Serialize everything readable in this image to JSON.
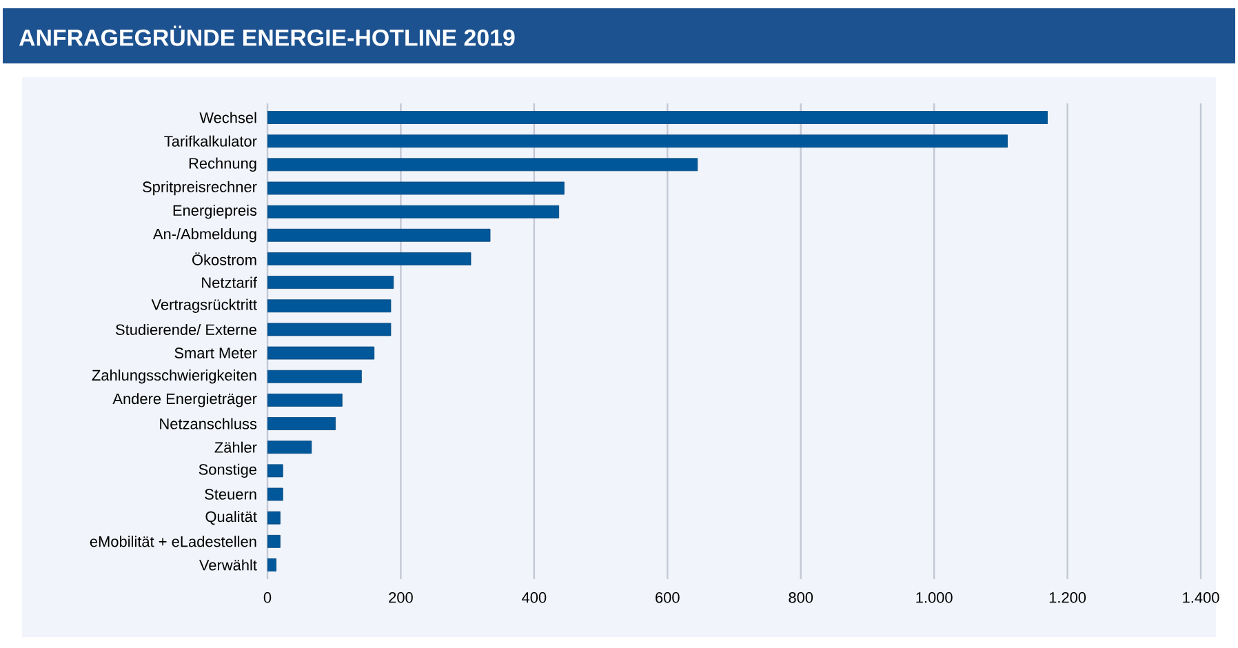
{
  "chart_data": {
    "type": "bar",
    "orientation": "horizontal",
    "title": "ANFRAGEGRÜNDE ENERGIE-HOTLINE 2019",
    "categories": [
      "Wechsel",
      "Tarifkalkulator",
      "Rechnung",
      "Spritpreisrechner",
      "Energiepreis",
      "An-/Abmeldung",
      "Ökostrom",
      "Netztarif",
      "Vertragsrücktritt",
      "Studierende/ Externe",
      "Smart Meter",
      "Zahlungsschwierigkeiten",
      "Andere Energieträger",
      "Netzanschluss",
      "Zähler",
      "Sonstige",
      "Steuern",
      "Qualität",
      "eMobilität + eLadestellen",
      "Verwählt"
    ],
    "values": [
      1170,
      1110,
      645,
      445,
      437,
      334,
      305,
      189,
      185,
      185,
      160,
      141,
      112,
      102,
      66,
      23,
      23,
      19,
      19,
      13
    ],
    "color": "#00579a",
    "xlim": [
      0,
      1400
    ],
    "xticks": [
      0,
      200,
      400,
      600,
      800,
      {
        "value": 1000,
        "label": "1.000"
      },
      {
        "value": 1200,
        "label": "1.200"
      },
      {
        "value": 1400,
        "label": "1.400"
      }
    ],
    "grid": "x"
  }
}
